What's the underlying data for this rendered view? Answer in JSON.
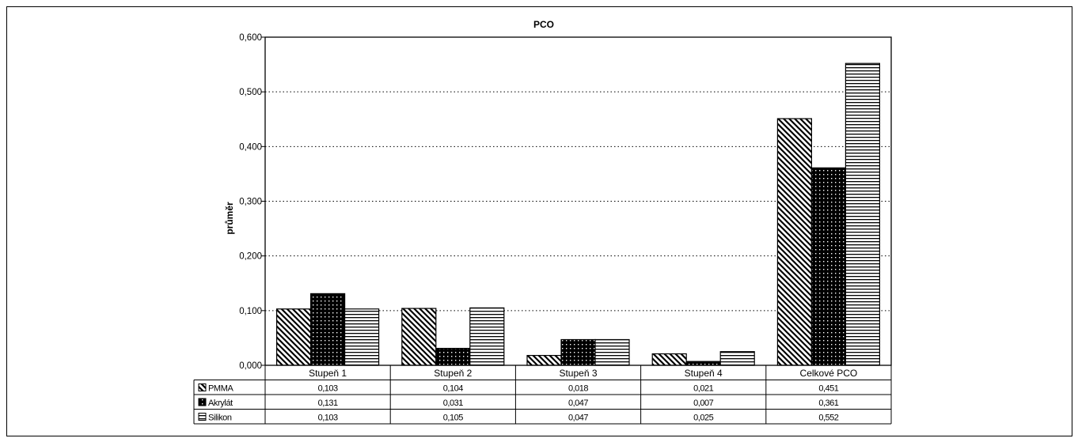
{
  "chart_data": {
    "type": "bar",
    "title": "PCO",
    "xlabel": "",
    "ylabel": "průměr",
    "ylim": [
      0,
      0.6
    ],
    "yticks": [
      0.0,
      0.1,
      0.2,
      0.3,
      0.4,
      0.5,
      0.6
    ],
    "ytick_labels": [
      "0,000",
      "0,100",
      "0,200",
      "0,300",
      "0,400",
      "0,500",
      "0,600"
    ],
    "grid": "horizontal dotted",
    "legend": "data table rows",
    "categories": [
      "Stupeň 1",
      "Stupeň 2",
      "Stupeň 3",
      "Stupeň 4",
      "Celkové PCO"
    ],
    "series": [
      {
        "name": "PMMA",
        "pattern": "diagonal-hatch",
        "values": [
          0.103,
          0.104,
          0.018,
          0.021,
          0.451
        ],
        "labels": [
          "0,103",
          "0,104",
          "0,018",
          "0,021",
          "0,451"
        ]
      },
      {
        "name": "Akrylát",
        "pattern": "dots",
        "values": [
          0.131,
          0.031,
          0.047,
          0.007,
          0.361
        ],
        "labels": [
          "0,131",
          "0,031",
          "0,047",
          "0,007",
          "0,361"
        ]
      },
      {
        "name": "Silikon",
        "pattern": "horizontal-lines",
        "values": [
          0.103,
          0.105,
          0.047,
          0.025,
          0.552
        ],
        "labels": [
          "0,103",
          "0,105",
          "0,047",
          "0,025",
          "0,552"
        ]
      }
    ],
    "colors": {
      "ink": "#000000",
      "background": "#ffffff"
    }
  }
}
